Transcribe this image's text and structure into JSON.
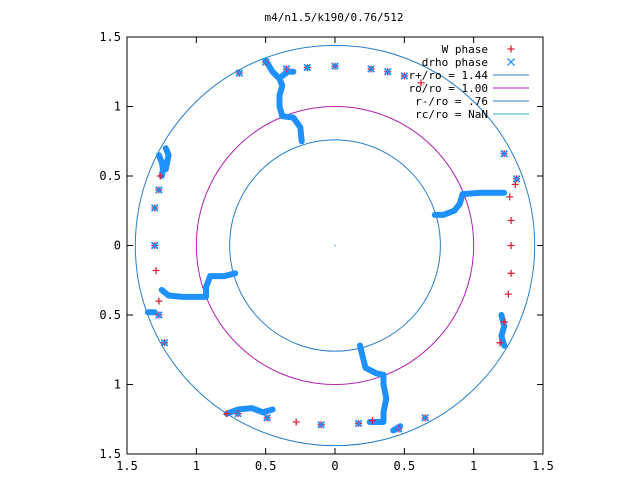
{
  "chart_data": {
    "type": "scatter",
    "title": "m4/n1.5/k190/0.76/512",
    "xlim": [
      -1.5,
      1.5
    ],
    "ylim": [
      -1.5,
      1.5
    ],
    "x_ticks": [
      {
        "value": -1.5,
        "label": "1.5"
      },
      {
        "value": -1.0,
        "label": "1"
      },
      {
        "value": -0.5,
        "label": "0.5"
      },
      {
        "value": 0,
        "label": "0"
      },
      {
        "value": 0.5,
        "label": "0.5"
      },
      {
        "value": 1.0,
        "label": "1"
      },
      {
        "value": 1.5,
        "label": "1.5"
      }
    ],
    "y_ticks": [
      {
        "value": 1.5,
        "label": "1.5"
      },
      {
        "value": 1.0,
        "label": "1"
      },
      {
        "value": 0.5,
        "label": "0.5"
      },
      {
        "value": 0,
        "label": "0"
      },
      {
        "value": -0.5,
        "label": "0.5"
      },
      {
        "value": -1.0,
        "label": "1"
      },
      {
        "value": -1.5,
        "label": "1.5"
      }
    ],
    "legend_position": "top-right",
    "legend": [
      {
        "label": "W phase",
        "marker": "plus",
        "color": "#e0203a"
      },
      {
        "label": "drho phase",
        "marker": "cross",
        "color": "#1e90ff"
      },
      {
        "label": "r+/ro = 1.44",
        "marker": "line",
        "color": "#2a7fc8"
      },
      {
        "label": "ro/ro = 1.00",
        "marker": "line",
        "color": "#b020b0"
      },
      {
        "label": "r-/ro = .76",
        "marker": "line",
        "color": "#2a7fc8"
      },
      {
        "label": "rc/ro = NaN",
        "marker": "line",
        "color": "#2ab0c8"
      }
    ],
    "circles": [
      {
        "name": "r+/ro = 1.44",
        "radius": 1.44,
        "color": "#2a7fc8"
      },
      {
        "name": "ro/ro = 1.00",
        "radius": 1.0,
        "color": "#b020b0"
      },
      {
        "name": "r-/ro = .76",
        "radius": 0.76,
        "color": "#2a7fc8"
      }
    ],
    "series": [
      {
        "name": "W phase",
        "color": "#e0203a",
        "marker": "plus",
        "points": [
          [
            -0.69,
            1.24
          ],
          [
            -0.5,
            1.32
          ],
          [
            -0.35,
            1.27
          ],
          [
            -0.2,
            1.28
          ],
          [
            0.0,
            1.29
          ],
          [
            0.26,
            1.27
          ],
          [
            0.38,
            1.25
          ],
          [
            0.5,
            1.22
          ],
          [
            0.62,
            1.17
          ],
          [
            1.22,
            0.66
          ],
          [
            1.31,
            0.48
          ],
          [
            1.3,
            0.44
          ],
          [
            1.26,
            0.35
          ],
          [
            1.27,
            0.18
          ],
          [
            1.27,
            0.0
          ],
          [
            1.27,
            -0.2
          ],
          [
            1.25,
            -0.35
          ],
          [
            1.22,
            -0.55
          ],
          [
            1.19,
            -0.7
          ],
          [
            0.65,
            -1.24
          ],
          [
            0.46,
            -1.32
          ],
          [
            0.27,
            -1.26
          ],
          [
            0.17,
            -1.28
          ],
          [
            -0.1,
            -1.29
          ],
          [
            -0.28,
            -1.27
          ],
          [
            -0.49,
            -1.24
          ],
          [
            -0.7,
            -1.21
          ],
          [
            -0.78,
            -1.21
          ],
          [
            -1.23,
            -0.7
          ],
          [
            -1.27,
            -0.5
          ],
          [
            -1.27,
            -0.4
          ],
          [
            -1.29,
            -0.18
          ],
          [
            -1.3,
            0.0
          ],
          [
            -1.3,
            0.27
          ],
          [
            -1.27,
            0.4
          ],
          [
            -1.26,
            0.5
          ]
        ]
      },
      {
        "name": "drho phase",
        "color": "#1e90ff",
        "marker": "cross",
        "points": [
          [
            -0.69,
            1.24
          ],
          [
            -0.5,
            1.32
          ],
          [
            -0.35,
            1.27
          ],
          [
            -0.2,
            1.28
          ],
          [
            0.0,
            1.29
          ],
          [
            0.26,
            1.27
          ],
          [
            0.38,
            1.25
          ],
          [
            0.5,
            1.22
          ],
          [
            1.22,
            0.66
          ],
          [
            1.31,
            0.48
          ],
          [
            0.65,
            -1.24
          ],
          [
            0.46,
            -1.32
          ],
          [
            0.17,
            -1.28
          ],
          [
            -0.1,
            -1.29
          ],
          [
            -0.49,
            -1.24
          ],
          [
            -0.7,
            -1.21
          ],
          [
            -1.23,
            -0.7
          ],
          [
            -1.27,
            -0.5
          ],
          [
            -1.3,
            0.0
          ],
          [
            -1.3,
            0.27
          ],
          [
            -1.27,
            0.4
          ]
        ],
        "paths": [
          [
            [
              -0.5,
              1.33
            ],
            [
              -0.45,
              1.25
            ],
            [
              -0.42,
              1.22
            ],
            [
              -0.4,
              1.2
            ],
            [
              -0.38,
              1.15
            ],
            [
              -0.4,
              1.08
            ],
            [
              -0.4,
              1.0
            ],
            [
              -0.38,
              0.93
            ],
            [
              -0.3,
              0.92
            ],
            [
              -0.25,
              0.85
            ],
            [
              -0.24,
              0.75
            ]
          ],
          [
            [
              -0.38,
              1.22
            ],
            [
              -0.34,
              1.25
            ],
            [
              -0.3,
              1.25
            ]
          ],
          [
            [
              1.22,
              0.38
            ],
            [
              1.05,
              0.38
            ],
            [
              0.92,
              0.37
            ],
            [
              0.9,
              0.3
            ],
            [
              0.86,
              0.25
            ],
            [
              0.78,
              0.22
            ],
            [
              0.72,
              0.22
            ]
          ],
          [
            [
              1.2,
              -0.5
            ],
            [
              1.22,
              -0.58
            ],
            [
              1.2,
              -0.65
            ],
            [
              1.22,
              -0.72
            ]
          ],
          [
            [
              0.18,
              -0.72
            ],
            [
              0.2,
              -0.8
            ],
            [
              0.22,
              -0.88
            ],
            [
              0.3,
              -0.92
            ],
            [
              0.35,
              -0.93
            ],
            [
              0.35,
              -1.0
            ],
            [
              0.37,
              -1.1
            ],
            [
              0.35,
              -1.2
            ],
            [
              0.35,
              -1.27
            ],
            [
              0.25,
              -1.27
            ]
          ],
          [
            [
              0.42,
              -1.33
            ],
            [
              0.47,
              -1.3
            ]
          ],
          [
            [
              -0.78,
              -1.21
            ],
            [
              -0.7,
              -1.18
            ],
            [
              -0.6,
              -1.17
            ],
            [
              -0.52,
              -1.2
            ],
            [
              -0.45,
              -1.18
            ]
          ],
          [
            [
              -1.35,
              -0.48
            ],
            [
              -1.3,
              -0.48
            ]
          ],
          [
            [
              -1.25,
              -0.32
            ],
            [
              -1.2,
              -0.36
            ],
            [
              -1.1,
              -0.37
            ],
            [
              -0.93,
              -0.37
            ],
            [
              -0.93,
              -0.3
            ],
            [
              -0.9,
              -0.22
            ],
            [
              -0.8,
              -0.22
            ],
            [
              -0.72,
              -0.2
            ]
          ],
          [
            [
              -1.27,
              0.65
            ],
            [
              -1.25,
              0.6
            ],
            [
              -1.24,
              0.55
            ],
            [
              -1.25,
              0.5
            ]
          ],
          [
            [
              -1.22,
              0.7
            ],
            [
              -1.2,
              0.65
            ],
            [
              -1.22,
              0.55
            ]
          ]
        ]
      }
    ]
  }
}
